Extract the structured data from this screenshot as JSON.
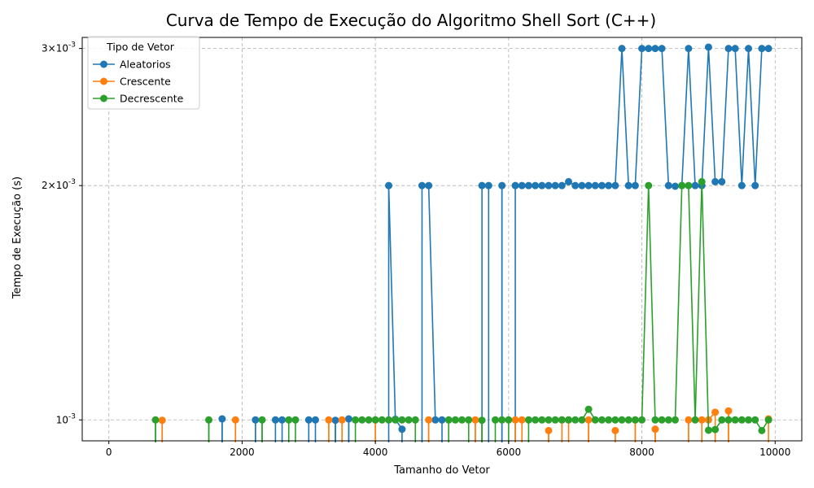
{
  "chart_data": {
    "type": "line",
    "title": "Curva de Tempo de Execução do Algoritmo Shell Sort (C++)",
    "xlabel": "Tamanho do Vetor",
    "ylabel": "Tempo de Execução (s)",
    "xlim": [
      -400,
      10400
    ],
    "ylim": [
      0.00094,
      0.0031
    ],
    "yscale": "log",
    "grid": true,
    "x_ticks": [
      0,
      2000,
      4000,
      6000,
      8000,
      10000
    ],
    "x_tick_labels": [
      "0",
      "2000",
      "4000",
      "6000",
      "8000",
      "10000"
    ],
    "y_ticks": [
      0.001,
      0.002,
      0.003
    ],
    "y_tick_labels": [
      "10^{-3}",
      "2×10^{-3}",
      "3×10^{-3}"
    ],
    "legend": {
      "title": "Tipo de Vetor",
      "position": "top-left"
    },
    "series": [
      {
        "name": "Aleatorios",
        "color": "#1f77b4",
        "points": [
          [
            0,
            0
          ],
          [
            100,
            0
          ],
          [
            200,
            0
          ],
          [
            300,
            0
          ],
          [
            400,
            0
          ],
          [
            500,
            0
          ],
          [
            600,
            0
          ],
          [
            700,
            0
          ],
          [
            800,
            0
          ],
          [
            900,
            0
          ],
          [
            1000,
            0
          ],
          [
            1100,
            0
          ],
          [
            1200,
            0
          ],
          [
            1300,
            0
          ],
          [
            1400,
            0
          ],
          [
            1500,
            0
          ],
          [
            1600,
            0
          ],
          [
            1700,
            0.001003
          ],
          [
            1800,
            0
          ],
          [
            1900,
            0
          ],
          [
            2000,
            0
          ],
          [
            2100,
            0
          ],
          [
            2200,
            0.001
          ],
          [
            2300,
            0
          ],
          [
            2400,
            0
          ],
          [
            2500,
            0.001
          ],
          [
            2600,
            0.001
          ],
          [
            2700,
            0
          ],
          [
            2800,
            0
          ],
          [
            2900,
            0
          ],
          [
            3000,
            0.001
          ],
          [
            3100,
            0.001
          ],
          [
            3200,
            0
          ],
          [
            3300,
            0
          ],
          [
            3400,
            0.000999
          ],
          [
            3500,
            0
          ],
          [
            3600,
            0.001003
          ],
          [
            3700,
            0
          ],
          [
            3800,
            0
          ],
          [
            3900,
            0
          ],
          [
            4000,
            0
          ],
          [
            4100,
            0
          ],
          [
            4200,
            0.002
          ],
          [
            4300,
            0.001002
          ],
          [
            4400,
            0.000973
          ],
          [
            4500,
            0
          ],
          [
            4600,
            0
          ],
          [
            4700,
            0.002
          ],
          [
            4800,
            0.002
          ],
          [
            4900,
            0.001
          ],
          [
            5000,
            0.001
          ],
          [
            5100,
            0
          ],
          [
            5200,
            0
          ],
          [
            5300,
            0
          ],
          [
            5400,
            0
          ],
          [
            5500,
            0
          ],
          [
            5600,
            0.002
          ],
          [
            5700,
            0.002
          ],
          [
            5800,
            0
          ],
          [
            5900,
            0.002
          ],
          [
            6000,
            0
          ],
          [
            6100,
            0.002
          ],
          [
            6200,
            0.002
          ],
          [
            6300,
            0.002
          ],
          [
            6400,
            0.002
          ],
          [
            6500,
            0.002
          ],
          [
            6600,
            0.002
          ],
          [
            6700,
            0.002
          ],
          [
            6800,
            0.002
          ],
          [
            6900,
            0.002023
          ],
          [
            7000,
            0.002
          ],
          [
            7100,
            0.002
          ],
          [
            7200,
            0.002
          ],
          [
            7300,
            0.002
          ],
          [
            7400,
            0.002
          ],
          [
            7500,
            0.002
          ],
          [
            7600,
            0.002
          ],
          [
            7700,
            0.003
          ],
          [
            7800,
            0.002
          ],
          [
            7900,
            0.002
          ],
          [
            8000,
            0.003
          ],
          [
            8100,
            0.003
          ],
          [
            8200,
            0.003
          ],
          [
            8300,
            0.003
          ],
          [
            8400,
            0.002
          ],
          [
            8500,
            0.001996
          ],
          [
            8600,
            0.002
          ],
          [
            8700,
            0.003
          ],
          [
            8800,
            0.002
          ],
          [
            8900,
            0.002
          ],
          [
            9000,
            0.003012
          ],
          [
            9100,
            0.002023
          ],
          [
            9200,
            0.002023
          ],
          [
            9300,
            0.003
          ],
          [
            9400,
            0.003
          ],
          [
            9500,
            0.002
          ],
          [
            9600,
            0.003
          ],
          [
            9700,
            0.002
          ],
          [
            9800,
            0.003
          ],
          [
            9900,
            0.003
          ]
        ]
      },
      {
        "name": "Crescente",
        "color": "#ff7f0e",
        "points": [
          [
            0,
            0
          ],
          [
            100,
            0
          ],
          [
            200,
            0
          ],
          [
            300,
            0
          ],
          [
            400,
            0
          ],
          [
            500,
            0
          ],
          [
            600,
            0
          ],
          [
            700,
            0
          ],
          [
            800,
            0.000999
          ],
          [
            900,
            0
          ],
          [
            1000,
            0
          ],
          [
            1100,
            0
          ],
          [
            1200,
            0
          ],
          [
            1300,
            0
          ],
          [
            1400,
            0
          ],
          [
            1500,
            0
          ],
          [
            1600,
            0
          ],
          [
            1700,
            0
          ],
          [
            1800,
            0
          ],
          [
            1900,
            0.001
          ],
          [
            2000,
            0
          ],
          [
            2100,
            0
          ],
          [
            2200,
            0
          ],
          [
            2300,
            0
          ],
          [
            2400,
            0
          ],
          [
            2500,
            0
          ],
          [
            2600,
            0
          ],
          [
            2700,
            0
          ],
          [
            2800,
            0
          ],
          [
            2900,
            0
          ],
          [
            3000,
            0
          ],
          [
            3100,
            0
          ],
          [
            3200,
            0
          ],
          [
            3300,
            0.001
          ],
          [
            3400,
            0
          ],
          [
            3500,
            0.001
          ],
          [
            3600,
            0
          ],
          [
            3700,
            0
          ],
          [
            3800,
            0
          ],
          [
            3900,
            0
          ],
          [
            4000,
            0.001
          ],
          [
            4100,
            0
          ],
          [
            4200,
            0
          ],
          [
            4300,
            0
          ],
          [
            4400,
            0
          ],
          [
            4500,
            0
          ],
          [
            4600,
            0
          ],
          [
            4700,
            0
          ],
          [
            4800,
            0.001
          ],
          [
            4900,
            0
          ],
          [
            5000,
            0
          ],
          [
            5100,
            0
          ],
          [
            5200,
            0
          ],
          [
            5300,
            0
          ],
          [
            5400,
            0
          ],
          [
            5500,
            0.001
          ],
          [
            5600,
            0
          ],
          [
            5700,
            0
          ],
          [
            5800,
            0
          ],
          [
            5900,
            0
          ],
          [
            6000,
            0
          ],
          [
            6100,
            0.001
          ],
          [
            6200,
            0.001
          ],
          [
            6300,
            0
          ],
          [
            6400,
            0
          ],
          [
            6500,
            0
          ],
          [
            6600,
            0.000969
          ],
          [
            6700,
            0
          ],
          [
            6800,
            0.001
          ],
          [
            6900,
            0.001
          ],
          [
            7000,
            0
          ],
          [
            7100,
            0
          ],
          [
            7200,
            0.001
          ],
          [
            7300,
            0
          ],
          [
            7400,
            0
          ],
          [
            7500,
            0
          ],
          [
            7600,
            0.000969
          ],
          [
            7700,
            0
          ],
          [
            7800,
            0
          ],
          [
            7900,
            0.001
          ],
          [
            8000,
            0
          ],
          [
            8100,
            0
          ],
          [
            8200,
            0.000973
          ],
          [
            8300,
            0
          ],
          [
            8400,
            0
          ],
          [
            8500,
            0
          ],
          [
            8600,
            0
          ],
          [
            8700,
            0.001
          ],
          [
            8800,
            0
          ],
          [
            8900,
            0.001
          ],
          [
            9000,
            0.001
          ],
          [
            9100,
            0.001023
          ],
          [
            9200,
            0
          ],
          [
            9300,
            0.001027
          ],
          [
            9400,
            0
          ],
          [
            9500,
            0
          ],
          [
            9600,
            0
          ],
          [
            9700,
            0
          ],
          [
            9800,
            0
          ],
          [
            9900,
            0.001003
          ]
        ]
      },
      {
        "name": "Decrescente",
        "color": "#2ca02c",
        "points": [
          [
            0,
            0
          ],
          [
            100,
            0
          ],
          [
            200,
            0
          ],
          [
            300,
            0
          ],
          [
            400,
            0
          ],
          [
            500,
            0
          ],
          [
            600,
            0
          ],
          [
            700,
            0.001
          ],
          [
            800,
            0
          ],
          [
            900,
            0
          ],
          [
            1000,
            0
          ],
          [
            1100,
            0
          ],
          [
            1200,
            0
          ],
          [
            1300,
            0
          ],
          [
            1400,
            0
          ],
          [
            1500,
            0.001
          ],
          [
            1600,
            0
          ],
          [
            1700,
            0
          ],
          [
            1800,
            0
          ],
          [
            1900,
            0
          ],
          [
            2000,
            0
          ],
          [
            2100,
            0
          ],
          [
            2200,
            0
          ],
          [
            2300,
            0.001
          ],
          [
            2400,
            0
          ],
          [
            2500,
            0
          ],
          [
            2600,
            0
          ],
          [
            2700,
            0.001
          ],
          [
            2800,
            0.001
          ],
          [
            2900,
            0
          ],
          [
            3000,
            0
          ],
          [
            3100,
            0
          ],
          [
            3200,
            0
          ],
          [
            3300,
            0
          ],
          [
            3400,
            0
          ],
          [
            3500,
            0
          ],
          [
            3600,
            0
          ],
          [
            3700,
            0.001
          ],
          [
            3800,
            0.001
          ],
          [
            3900,
            0.001
          ],
          [
            4000,
            0.001
          ],
          [
            4100,
            0.001
          ],
          [
            4200,
            0.001
          ],
          [
            4300,
            0.001
          ],
          [
            4400,
            0.001
          ],
          [
            4500,
            0.001
          ],
          [
            4600,
            0.001
          ],
          [
            4700,
            0
          ],
          [
            4800,
            0
          ],
          [
            4900,
            0
          ],
          [
            5000,
            0
          ],
          [
            5100,
            0.001
          ],
          [
            5200,
            0.001
          ],
          [
            5300,
            0.001
          ],
          [
            5400,
            0.001
          ],
          [
            5500,
            0
          ],
          [
            5600,
            0.000999
          ],
          [
            5700,
            0
          ],
          [
            5800,
            0.001
          ],
          [
            5900,
            0.001
          ],
          [
            6000,
            0.001
          ],
          [
            6100,
            0
          ],
          [
            6200,
            0
          ],
          [
            6300,
            0.001
          ],
          [
            6400,
            0.001
          ],
          [
            6500,
            0.001
          ],
          [
            6600,
            0.001
          ],
          [
            6700,
            0.001
          ],
          [
            6800,
            0.001
          ],
          [
            6900,
            0.001
          ],
          [
            7000,
            0.001
          ],
          [
            7100,
            0.001
          ],
          [
            7200,
            0.001032
          ],
          [
            7300,
            0.001
          ],
          [
            7400,
            0.001
          ],
          [
            7500,
            0.001
          ],
          [
            7600,
            0.001
          ],
          [
            7700,
            0.001
          ],
          [
            7800,
            0.001
          ],
          [
            7900,
            0.001
          ],
          [
            8000,
            0.001
          ],
          [
            8100,
            0.002
          ],
          [
            8200,
            0.001
          ],
          [
            8300,
            0.001
          ],
          [
            8400,
            0.001
          ],
          [
            8500,
            0.001
          ],
          [
            8600,
            0.002
          ],
          [
            8700,
            0.002
          ],
          [
            8800,
            0.001
          ],
          [
            8900,
            0.002023
          ],
          [
            9000,
            0.00097
          ],
          [
            9100,
            0.000972
          ],
          [
            9200,
            0.001
          ],
          [
            9300,
            0.001
          ],
          [
            9400,
            0.001
          ],
          [
            9500,
            0.001
          ],
          [
            9600,
            0.001
          ],
          [
            9700,
            0.001
          ],
          [
            9800,
            0.000969
          ],
          [
            9900,
            0.001
          ]
        ]
      }
    ]
  }
}
